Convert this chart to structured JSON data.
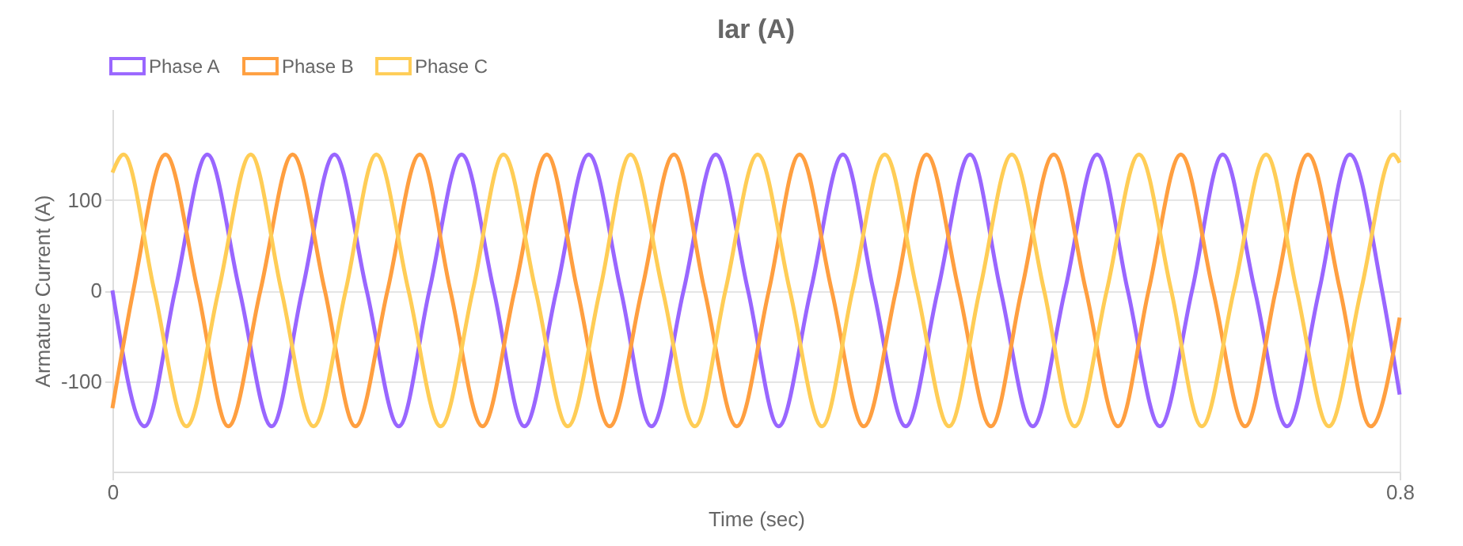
{
  "chart_data": {
    "type": "line",
    "title": "Iar (A)",
    "xlabel": "Time (sec)",
    "ylabel": "Armature Current (A)",
    "xlim": [
      0,
      0.8
    ],
    "xticks": [
      0,
      0.8
    ],
    "ylim": [
      -200,
      200
    ],
    "yticks": [
      -100,
      0,
      100
    ],
    "grid": true,
    "legend": "top",
    "marker": "none",
    "line_style": "solid",
    "series": [
      {
        "name": "Phase A",
        "color": "#9966ff",
        "x": [
          0,
          0.02,
          0.039,
          0.059,
          0.079,
          0.099,
          0.118,
          0.138,
          0.158,
          0.178,
          0.197,
          0.217,
          0.237,
          0.256,
          0.276,
          0.296,
          0.316,
          0.335,
          0.355,
          0.375,
          0.395,
          0.414,
          0.434,
          0.454,
          0.473,
          0.493,
          0.513,
          0.533,
          0.552,
          0.572,
          0.592,
          0.612,
          0.631,
          0.651,
          0.671,
          0.69,
          0.71,
          0.73,
          0.75,
          0.769,
          0.789,
          0.8
        ],
        "values": [
          0,
          -150,
          0,
          150,
          0,
          -150,
          0,
          150,
          0,
          -150,
          0,
          150,
          0,
          -150,
          0,
          150,
          0,
          -150,
          0,
          150,
          0,
          -150,
          0,
          150,
          0,
          -150,
          0,
          150,
          0,
          -150,
          0,
          150,
          0,
          -150,
          0,
          150,
          0,
          -150,
          0,
          150,
          0,
          -115
        ]
      },
      {
        "name": "Phase B",
        "color": "#ff9f40",
        "x": [
          0,
          0.013,
          0.033,
          0.053,
          0.072,
          0.092,
          0.112,
          0.132,
          0.151,
          0.171,
          0.191,
          0.21,
          0.23,
          0.25,
          0.27,
          0.289,
          0.309,
          0.329,
          0.349,
          0.368,
          0.388,
          0.408,
          0.427,
          0.447,
          0.467,
          0.487,
          0.506,
          0.526,
          0.546,
          0.565,
          0.585,
          0.605,
          0.625,
          0.644,
          0.664,
          0.684,
          0.704,
          0.723,
          0.743,
          0.763,
          0.782,
          0.8
        ],
        "values": [
          -130,
          0,
          150,
          0,
          -150,
          0,
          150,
          0,
          -150,
          0,
          150,
          0,
          -150,
          0,
          150,
          0,
          -150,
          0,
          150,
          0,
          -150,
          0,
          150,
          0,
          -150,
          0,
          150,
          0,
          -150,
          0,
          150,
          0,
          -150,
          0,
          150,
          0,
          -150,
          0,
          150,
          0,
          -150,
          -30
        ]
      },
      {
        "name": "Phase C",
        "color": "#ffcd56",
        "x": [
          0,
          0.007,
          0.026,
          0.046,
          0.066,
          0.086,
          0.105,
          0.125,
          0.145,
          0.164,
          0.184,
          0.204,
          0.224,
          0.243,
          0.263,
          0.283,
          0.303,
          0.322,
          0.342,
          0.362,
          0.381,
          0.401,
          0.421,
          0.441,
          0.46,
          0.48,
          0.5,
          0.52,
          0.539,
          0.559,
          0.579,
          0.598,
          0.618,
          0.638,
          0.658,
          0.677,
          0.697,
          0.717,
          0.736,
          0.756,
          0.776,
          0.796,
          0.8
        ],
        "values": [
          130,
          150,
          0,
          -150,
          0,
          150,
          0,
          -150,
          0,
          150,
          0,
          -150,
          0,
          150,
          0,
          -150,
          0,
          150,
          0,
          -150,
          0,
          150,
          0,
          -150,
          0,
          150,
          0,
          -150,
          0,
          150,
          0,
          -150,
          0,
          150,
          0,
          -150,
          0,
          150,
          0,
          -150,
          0,
          150,
          141
        ]
      }
    ]
  }
}
